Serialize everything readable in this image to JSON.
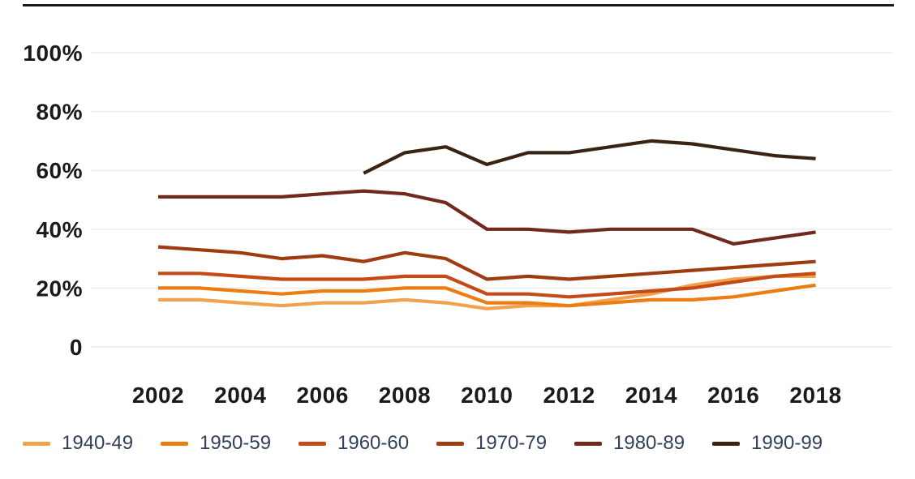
{
  "page": {
    "top_rule_color": "#1b1b1b",
    "background": "#ffffff"
  },
  "chart_data": {
    "type": "line",
    "x": [
      2002,
      2003,
      2004,
      2005,
      2006,
      2007,
      2008,
      2009,
      2010,
      2011,
      2012,
      2013,
      2014,
      2015,
      2016,
      2017,
      2018
    ],
    "x_tick_labels": [
      "2002",
      "2004",
      "2006",
      "2008",
      "2010",
      "2012",
      "2014",
      "2016",
      "2018"
    ],
    "y_ticks": [
      0,
      20,
      40,
      60,
      80,
      100
    ],
    "y_tick_labels": [
      "0",
      "20%",
      "40%",
      "60%",
      "80%",
      "100%"
    ],
    "ylim": [
      0,
      100
    ],
    "xlim": [
      2002,
      2018
    ],
    "grid": "horizontal",
    "gridline_color": "#ececec",
    "axis_label_color": "#1a1a1a",
    "legend_position": "bottom",
    "legend_text_color": "#32405a",
    "title": "",
    "xlabel": "",
    "ylabel": "",
    "series": [
      {
        "name": "1940-49",
        "color": "#F1A24F",
        "values": [
          16,
          16,
          15,
          14,
          15,
          15,
          16,
          15,
          13,
          14,
          14,
          16,
          18,
          21,
          23,
          24,
          24
        ]
      },
      {
        "name": "1950-59",
        "color": "#EC7D13",
        "values": [
          20,
          20,
          19,
          18,
          19,
          19,
          20,
          20,
          15,
          15,
          14,
          15,
          16,
          16,
          17,
          19,
          21
        ]
      },
      {
        "name": "1960-60",
        "color": "#C44A16",
        "values": [
          25,
          25,
          24,
          23,
          23,
          23,
          24,
          24,
          18,
          18,
          17,
          18,
          19,
          20,
          22,
          24,
          25
        ]
      },
      {
        "name": "1970-79",
        "color": "#9E3B10",
        "values": [
          34,
          33,
          32,
          30,
          31,
          29,
          32,
          30,
          23,
          24,
          23,
          24,
          25,
          26,
          27,
          28,
          29
        ]
      },
      {
        "name": "1980-89",
        "color": "#70291B",
        "values": [
          51,
          51,
          51,
          51,
          52,
          53,
          52,
          49,
          40,
          40,
          39,
          40,
          40,
          40,
          35,
          37,
          39
        ]
      },
      {
        "name": "1990-99",
        "color": "#3A2312",
        "values": [
          null,
          null,
          null,
          null,
          null,
          59,
          66,
          68,
          62,
          66,
          66,
          68,
          70,
          69,
          67,
          65,
          64
        ]
      }
    ]
  }
}
